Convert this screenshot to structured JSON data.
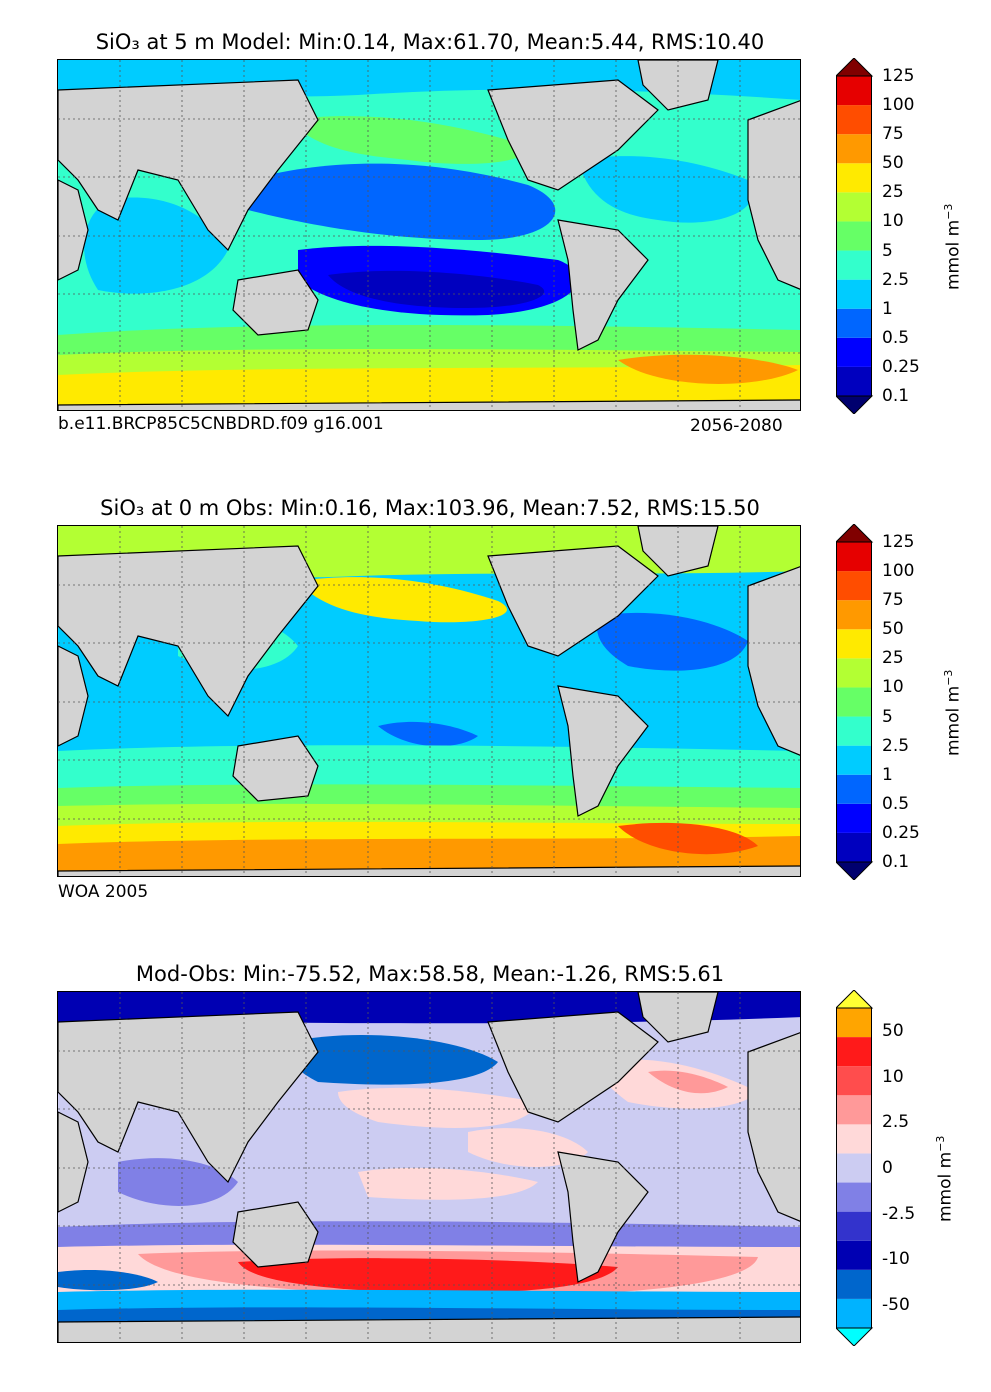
{
  "panels": [
    {
      "id": "model",
      "title": "SiO₃ at 5 m Model: Min:0.14, Max:61.70, Mean:5.44, RMS:10.40",
      "caption_left": "b.e11.BRCP85C5CNBDRD.f09 g16.001",
      "caption_right": "2056-2080",
      "unit": "mmol m",
      "unit_exp": "−3",
      "colorbar": {
        "levels": [
          "0.1",
          "0.25",
          "0.5",
          "1",
          "2.5",
          "5",
          "10",
          "25",
          "50",
          "75",
          "100",
          "125"
        ],
        "colors": [
          "#00006e",
          "#0000bf",
          "#0000ff",
          "#0066ff",
          "#00ccff",
          "#33ffcc",
          "#66ff66",
          "#b3ff33",
          "#ffea00",
          "#ff9900",
          "#ff4d00",
          "#e60000",
          "#800000"
        ]
      }
    },
    {
      "id": "obs",
      "title": "SiO₃ at 0 m Obs: Min:0.16, Max:103.96, Mean:7.52, RMS:15.50",
      "caption_left": "WOA 2005",
      "caption_right": "",
      "unit": "mmol m",
      "unit_exp": "−3",
      "colorbar": {
        "levels": [
          "0.1",
          "0.25",
          "0.5",
          "1",
          "2.5",
          "5",
          "10",
          "25",
          "50",
          "75",
          "100",
          "125"
        ],
        "colors": [
          "#00006e",
          "#0000bf",
          "#0000ff",
          "#0066ff",
          "#00ccff",
          "#33ffcc",
          "#66ff66",
          "#b3ff33",
          "#ffea00",
          "#ff9900",
          "#ff4d00",
          "#e60000",
          "#800000"
        ]
      }
    },
    {
      "id": "diff",
      "title": "Mod-Obs: Min:-75.52, Max:58.58, Mean:-1.26, RMS:5.61",
      "caption_left": "",
      "caption_right": "",
      "unit": "mmol m",
      "unit_exp": "−3",
      "colorbar": {
        "levels": [
          "-50",
          "-10",
          "-2.5",
          "0",
          "2.5",
          "10",
          "50"
        ],
        "colors": [
          "#00ffff",
          "#00b3ff",
          "#0066cc",
          "#0000b3",
          "#3333cc",
          "#8080e6",
          "#ccccf2",
          "#ffd9d9",
          "#ff9999",
          "#ff4d4d",
          "#ff1a1a",
          "#ffa500",
          "#ffff33"
        ]
      }
    }
  ],
  "colors": {
    "land": "#d3d3d3",
    "coast": "#000000",
    "grid": "#555555"
  }
}
